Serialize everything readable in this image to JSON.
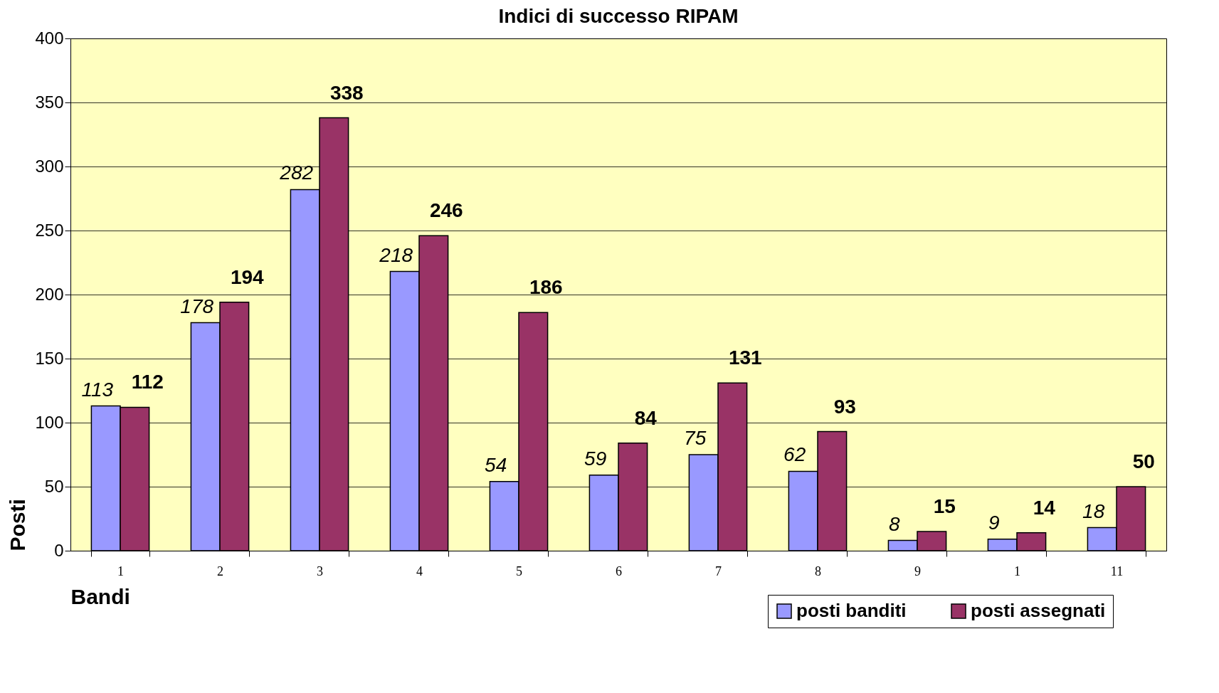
{
  "chart_data": {
    "type": "bar",
    "title": "Indici di successo RIPAM",
    "xlabel": "Bandi",
    "ylabel": "Posti",
    "categories": [
      "1",
      "2",
      "3",
      "4",
      "5",
      "6",
      "7",
      "8",
      "9",
      "1",
      "11"
    ],
    "series": [
      {
        "name": "posti banditi",
        "color": "#9999ff",
        "values": [
          113,
          178,
          282,
          218,
          54,
          59,
          75,
          62,
          8,
          9,
          18
        ]
      },
      {
        "name": "posti assegnati",
        "color": "#993366",
        "values": [
          112,
          194,
          338,
          246,
          186,
          84,
          131,
          93,
          15,
          14,
          50
        ]
      }
    ],
    "ylim": [
      0,
      400
    ],
    "yticks": [
      0,
      50,
      100,
      150,
      200,
      250,
      300,
      350,
      400
    ],
    "grid": "y",
    "legend": "bottom right",
    "data_labels": true
  }
}
